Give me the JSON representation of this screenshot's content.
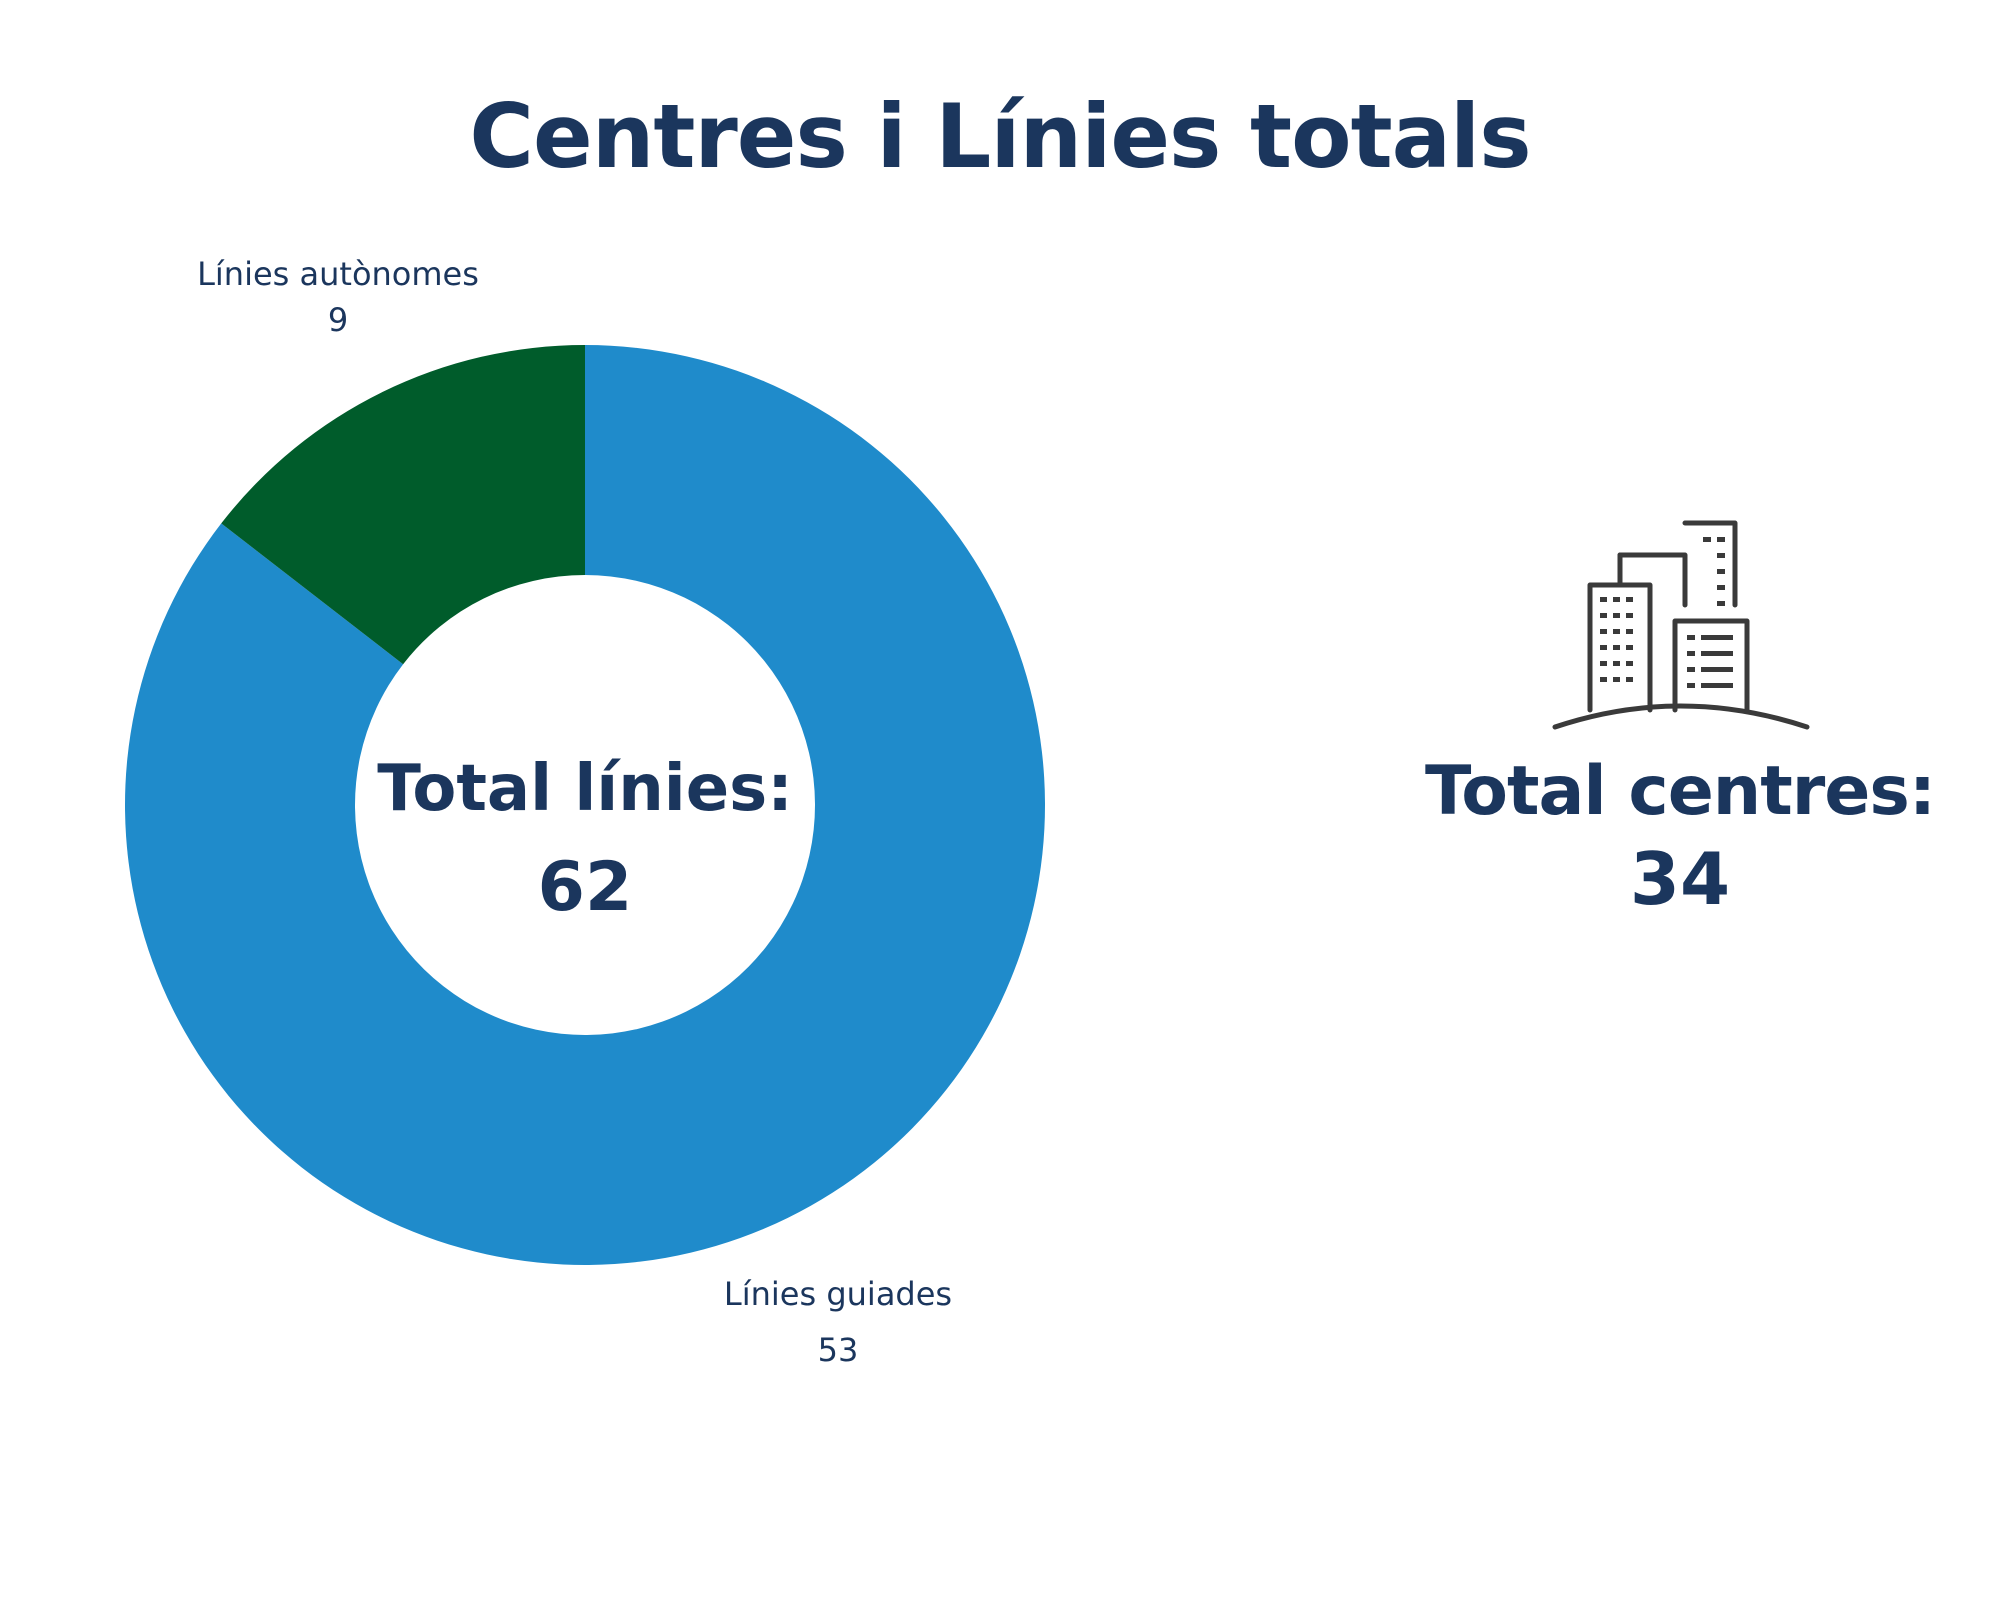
{
  "title": "Centres i Línies totals",
  "chart_data": {
    "type": "pie",
    "categories": [
      "Línies guiades",
      "Línies autònomes"
    ],
    "values": [
      53,
      9
    ],
    "colors": [
      "#1f8bcb",
      "#005c2b"
    ],
    "center_label": "Total línies:",
    "center_value": "62"
  },
  "centres": {
    "label": "Total centres:",
    "value": "34",
    "icon": "buildings-icon"
  },
  "text_color": "#1b365d"
}
